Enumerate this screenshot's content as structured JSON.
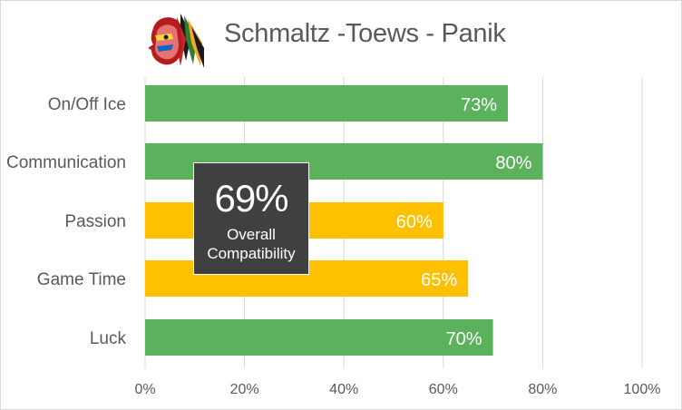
{
  "chart_data": {
    "type": "bar",
    "orientation": "horizontal",
    "title": "Schmaltz -Toews - Panik",
    "categories": [
      "On/Off Ice",
      "Communication",
      "Passion",
      "Game Time",
      "Luck"
    ],
    "values": [
      73,
      80,
      60,
      65,
      70
    ],
    "data_labels": [
      "73%",
      "80%",
      "60%",
      "65%",
      "70%"
    ],
    "bar_colors": [
      "#5cb15c",
      "#5cb15c",
      "#ffc000",
      "#ffc000",
      "#5cb15c"
    ],
    "xlim": [
      0,
      100
    ],
    "x_ticks": [
      0,
      20,
      40,
      60,
      80,
      100
    ],
    "x_tick_labels": [
      "0%",
      "20%",
      "40%",
      "60%",
      "80%",
      "100%"
    ],
    "grid": true,
    "legend": "none",
    "annotation": {
      "value": "69%",
      "label_line1": "Overall",
      "label_line2": "Compatibility"
    }
  },
  "logo": {
    "icon": "blackhawks-logo-icon"
  }
}
